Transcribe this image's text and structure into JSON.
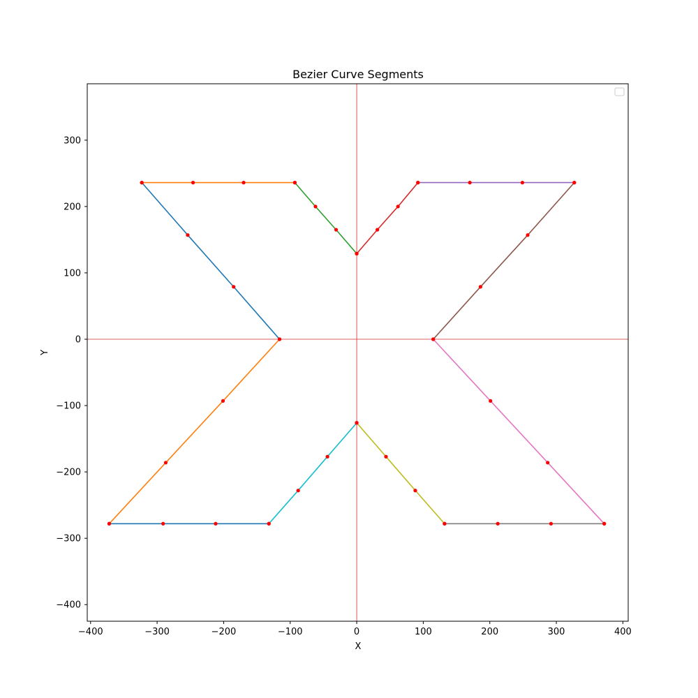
{
  "chart_data": {
    "type": "line",
    "title": "Bezier Curve Segments",
    "xlabel": "X",
    "ylabel": "Y",
    "xlim": [
      -405,
      408
    ],
    "ylim": [
      -425,
      385
    ],
    "xticks": [
      -400,
      -300,
      -200,
      -100,
      0,
      100,
      200,
      300,
      400
    ],
    "yticks": [
      -400,
      -300,
      -200,
      -100,
      0,
      100,
      200,
      300
    ],
    "reference_lines": {
      "x": 0,
      "y": 0,
      "color": "#d62728"
    },
    "legend": {
      "placement": "top-right",
      "entries": []
    },
    "grid": false,
    "control_point_color": "#ff0000",
    "series": [
      {
        "color": "#1f77b4",
        "points": [
          [
            -323,
            236
          ],
          [
            -254,
            157
          ],
          [
            -185,
            79
          ],
          [
            -116,
            0
          ]
        ]
      },
      {
        "color": "#ff7f0e",
        "points": [
          [
            -323,
            236
          ],
          [
            -246,
            236
          ],
          [
            -170,
            236
          ],
          [
            -93,
            236
          ]
        ]
      },
      {
        "color": "#2ca02c",
        "points": [
          [
            -93,
            236
          ],
          [
            -62,
            200
          ],
          [
            -31,
            165
          ],
          [
            0,
            129
          ]
        ]
      },
      {
        "color": "#d62728",
        "points": [
          [
            0,
            129
          ],
          [
            31,
            165
          ],
          [
            62,
            200
          ],
          [
            92,
            236
          ]
        ]
      },
      {
        "color": "#9467bd",
        "points": [
          [
            92,
            236
          ],
          [
            170,
            236
          ],
          [
            249,
            236
          ],
          [
            327,
            236
          ]
        ]
      },
      {
        "color": "#8c564b",
        "points": [
          [
            327,
            236
          ],
          [
            257,
            157
          ],
          [
            186,
            79
          ],
          [
            115,
            0
          ]
        ]
      },
      {
        "color": "#e377c2",
        "points": [
          [
            115,
            0
          ],
          [
            201,
            -93
          ],
          [
            287,
            -186
          ],
          [
            372,
            -278
          ]
        ]
      },
      {
        "color": "#7f7f7f",
        "points": [
          [
            372,
            -278
          ],
          [
            292,
            -278
          ],
          [
            212,
            -278
          ],
          [
            132,
            -278
          ]
        ]
      },
      {
        "color": "#bcbd22",
        "points": [
          [
            132,
            -278
          ],
          [
            88,
            -228
          ],
          [
            44,
            -177
          ],
          [
            0,
            -126
          ]
        ]
      },
      {
        "color": "#17becf",
        "points": [
          [
            0,
            -126
          ],
          [
            -44,
            -177
          ],
          [
            -88,
            -228
          ],
          [
            -132,
            -278
          ]
        ]
      },
      {
        "color": "#1f77b4",
        "points": [
          [
            -132,
            -278
          ],
          [
            -212,
            -278
          ],
          [
            -291,
            -278
          ],
          [
            -372,
            -278
          ]
        ]
      },
      {
        "color": "#ff7f0e",
        "points": [
          [
            -372,
            -278
          ],
          [
            -287,
            -186
          ],
          [
            -201,
            -93
          ],
          [
            -116,
            0
          ]
        ]
      }
    ]
  }
}
